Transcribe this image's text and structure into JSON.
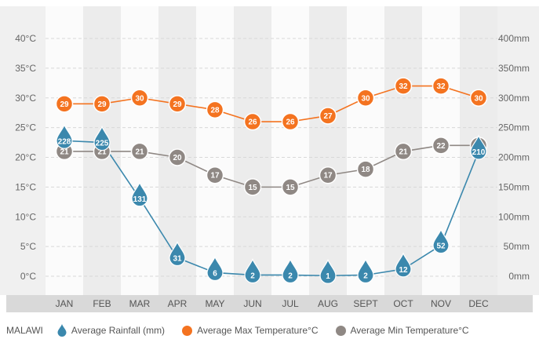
{
  "legend": {
    "country": "MALAWI",
    "rainfall_label": "Average Rainfall (mm)",
    "max_label": "Average Max Temperature°C",
    "min_label": "Average Min Temperature°C"
  },
  "colors": {
    "rain": "#3b88ad",
    "max": "#f47320",
    "min": "#8f8884",
    "band": "#ececec",
    "axisband": "#d9d9d9",
    "text": "#666666"
  },
  "chart_data": {
    "type": "line",
    "categories": [
      "JAN",
      "FEB",
      "MAR",
      "APR",
      "MAY",
      "JUN",
      "JUL",
      "AUG",
      "SEPT",
      "OCT",
      "NOV",
      "DEC"
    ],
    "left_axis": {
      "ticks": [
        "0°C",
        "5°C",
        "10°C",
        "15°C",
        "20°C",
        "25°C",
        "30°C",
        "35°C",
        "40°C"
      ],
      "ylim": [
        0,
        40
      ]
    },
    "right_axis": {
      "ticks": [
        "0mm",
        "50mm",
        "100mm",
        "150mm",
        "200mm",
        "250mm",
        "300mm",
        "350mm",
        "400mm"
      ],
      "ylim": [
        0,
        400
      ]
    },
    "series": [
      {
        "name": "Average Rainfall (mm)",
        "axis": "right",
        "marker": "drop",
        "values": [
          228,
          225,
          131,
          31,
          6,
          2,
          2,
          1,
          2,
          12,
          52,
          210
        ]
      },
      {
        "name": "Average Max Temperature°C",
        "axis": "left",
        "marker": "circle",
        "values": [
          29,
          29,
          30,
          29,
          28,
          26,
          26,
          27,
          30,
          32,
          32,
          30
        ]
      },
      {
        "name": "Average Min Temperature°C",
        "axis": "left",
        "marker": "circle",
        "values": [
          21,
          21,
          21,
          20,
          17,
          15,
          15,
          17,
          18,
          21,
          22,
          22
        ]
      }
    ],
    "grid": true
  }
}
